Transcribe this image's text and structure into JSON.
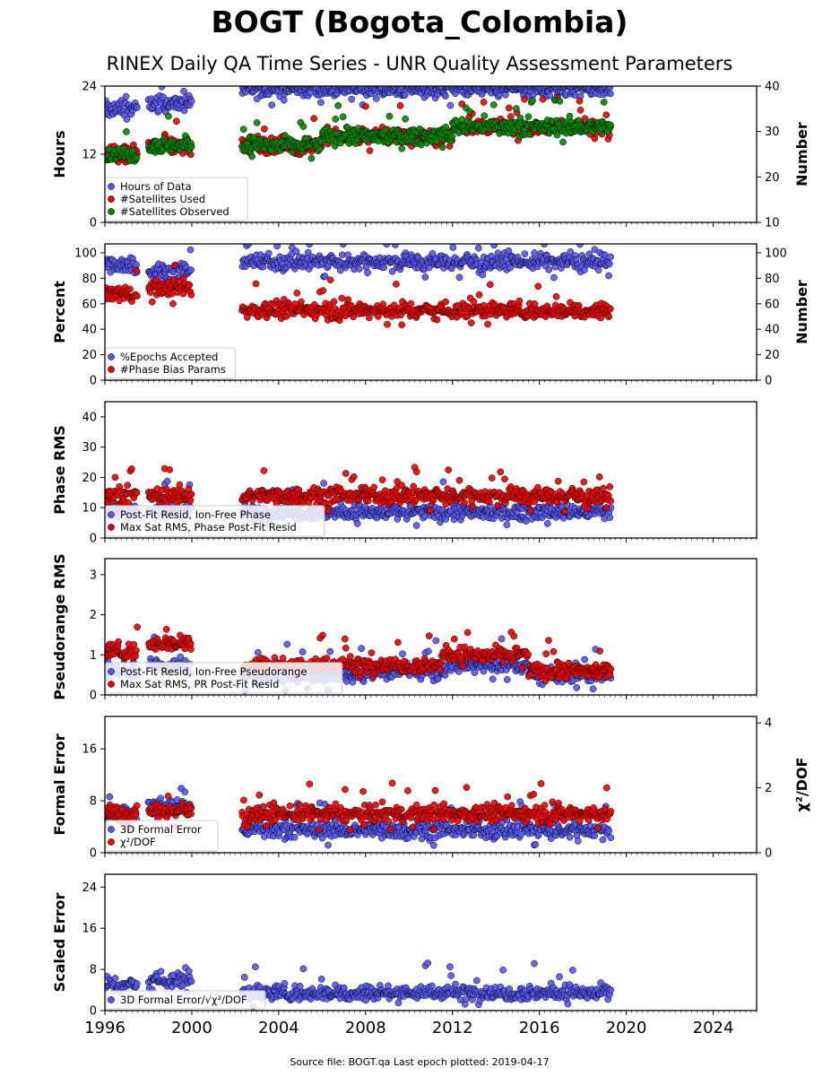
{
  "title": "BOGT (Bogota_Colombia)",
  "subtitle": "RINEX Daily QA Time Series - UNR Quality Assessment Parameters",
  "footer": "Source file: BOGT.qa Last epoch plotted: 2019-04-17",
  "colors": {
    "blue": "#5555ee",
    "red": "#ee0000",
    "green": "#008800"
  },
  "chart_data": {
    "type": "scatter",
    "x_axis": {
      "range": [
        1996,
        2026
      ],
      "ticks": [
        1996,
        2000,
        2004,
        2008,
        2012,
        2016,
        2020,
        2024
      ],
      "tick_labels": [
        "1996",
        "2000",
        "2004",
        "2008",
        "2012",
        "2016",
        "2020",
        "2024"
      ]
    },
    "data_span": {
      "start": 1996.05,
      "end": 2019.29,
      "gaps": [
        [
          1997.55,
          1997.95
        ],
        [
          2000.05,
          2002.25
        ]
      ]
    },
    "panels": [
      {
        "ylabel": "Hours",
        "ylim": [
          0,
          24
        ],
        "yticks": [
          0,
          12,
          24
        ],
        "right_axis": {
          "label": "Number",
          "ylim": [
            10,
            40
          ],
          "ticks": [
            10,
            20,
            30,
            40
          ]
        },
        "legend": "bottom-left",
        "series": [
          {
            "name": "Hours of Data",
            "color": "blue",
            "axis": "left",
            "typical": 24,
            "segments": [
              [
                1996.0,
                1997.5,
                20
              ],
              [
                1998.0,
                2000.0,
                21
              ],
              [
                2002.3,
                2019.3,
                23.5
              ]
            ]
          },
          {
            "name": "#Satellites Used",
            "color": "red",
            "axis": "right",
            "typical": 27,
            "segments": [
              [
                1996.0,
                1997.5,
                25
              ],
              [
                1998.0,
                2000.0,
                27
              ],
              [
                2002.3,
                2006.0,
                27
              ],
              [
                2006.0,
                2012.0,
                29
              ],
              [
                2012.0,
                2019.3,
                31
              ]
            ]
          },
          {
            "name": "#Satellites Observed",
            "color": "green",
            "axis": "right",
            "typical": 27,
            "segments": [
              [
                1996.0,
                1997.5,
                25
              ],
              [
                1998.0,
                2000.0,
                27
              ],
              [
                2002.3,
                2006.0,
                27
              ],
              [
                2006.0,
                2012.0,
                29
              ],
              [
                2012.0,
                2019.3,
                31
              ]
            ]
          }
        ]
      },
      {
        "ylabel": "Percent",
        "ylim": [
          0,
          107
        ],
        "yticks": [
          0,
          20,
          40,
          60,
          80,
          100
        ],
        "right_axis": {
          "label": "Number",
          "ylim": [
            0,
            107
          ],
          "ticks": [
            0,
            20,
            40,
            60,
            80,
            100
          ]
        },
        "legend": "bottom-left",
        "series": [
          {
            "name": "%Epochs Accepted",
            "color": "blue",
            "axis": "left",
            "segments": [
              [
                1996.0,
                1997.5,
                91
              ],
              [
                1998.0,
                2000.0,
                85
              ],
              [
                2002.3,
                2019.3,
                93
              ]
            ]
          },
          {
            "name": "#Phase Bias Params",
            "color": "red",
            "axis": "right",
            "segments": [
              [
                1996.0,
                1997.5,
                68
              ],
              [
                1998.0,
                2000.0,
                72
              ],
              [
                2002.3,
                2019.3,
                55
              ]
            ]
          }
        ]
      },
      {
        "ylabel": "Phase RMS",
        "ylim": [
          0,
          45
        ],
        "yticks": [
          0,
          10,
          20,
          30,
          40
        ],
        "legend": "bottom-left",
        "series": [
          {
            "name": "Post-Fit Resid, Ion-Free Phase",
            "color": "blue",
            "segments": [
              [
                1996.0,
                1997.5,
                9
              ],
              [
                1998.0,
                2000.0,
                9
              ],
              [
                2002.3,
                2019.3,
                8.5
              ]
            ]
          },
          {
            "name": "Max Sat RMS, Phase Post-Fit Resid",
            "color": "red",
            "segments": [
              [
                1996.0,
                1997.5,
                14
              ],
              [
                1998.0,
                2000.0,
                14
              ],
              [
                2002.3,
                2019.3,
                14
              ]
            ]
          }
        ]
      },
      {
        "ylabel": "Pseudorange RMS",
        "ylim": [
          0,
          3.4
        ],
        "yticks": [
          0,
          1,
          2,
          3
        ],
        "legend": "bottom-left",
        "series": [
          {
            "name": "Post-Fit Resid, Ion-Free Pseudorange",
            "color": "blue",
            "segments": [
              [
                1996.0,
                1997.5,
                0.6
              ],
              [
                1998.0,
                2000.0,
                0.7
              ],
              [
                2002.3,
                2008.0,
                0.5
              ],
              [
                2008.0,
                2011.5,
                0.6
              ],
              [
                2011.5,
                2015.5,
                0.75
              ],
              [
                2015.5,
                2019.3,
                0.5
              ]
            ]
          },
          {
            "name": "Max Sat RMS, PR Post-Fit Resid",
            "color": "red",
            "segments": [
              [
                1996.0,
                1997.5,
                1.1
              ],
              [
                1998.0,
                2000.0,
                1.3
              ],
              [
                2002.3,
                2008.0,
                0.75
              ],
              [
                2008.0,
                2011.5,
                0.75
              ],
              [
                2011.5,
                2015.5,
                1.0
              ],
              [
                2015.5,
                2019.3,
                0.6
              ]
            ]
          }
        ]
      },
      {
        "ylabel": "Formal Error",
        "ylim": [
          0,
          21
        ],
        "yticks": [
          0,
          8,
          16
        ],
        "right_axis": {
          "label": "χ²/DOF",
          "ylim": [
            0,
            4.2
          ],
          "ticks": [
            0,
            2,
            4
          ]
        },
        "legend": "bottom-left",
        "series": [
          {
            "name": "3D Formal Error",
            "color": "blue",
            "axis": "left",
            "segments": [
              [
                1996.0,
                1997.5,
                6
              ],
              [
                1998.0,
                2000.0,
                7
              ],
              [
                2002.3,
                2019.3,
                3.5
              ]
            ]
          },
          {
            "name": "χ²/DOF",
            "color": "red",
            "axis": "right",
            "segments": [
              [
                1996.0,
                1997.5,
                1.2
              ],
              [
                1998.0,
                2000.0,
                1.3
              ],
              [
                2002.3,
                2019.3,
                1.2
              ]
            ]
          }
        ]
      },
      {
        "ylabel": "Scaled Error",
        "ylim": [
          0,
          26.5
        ],
        "yticks": [
          0,
          8,
          16,
          24
        ],
        "legend": "bottom-left",
        "series": [
          {
            "name": "3D Formal Error/√χ²/DOF",
            "color": "blue",
            "segments": [
              [
                1996.0,
                1997.5,
                5
              ],
              [
                1998.0,
                2000.0,
                6
              ],
              [
                2002.3,
                2019.3,
                3.5
              ]
            ]
          }
        ]
      }
    ]
  }
}
